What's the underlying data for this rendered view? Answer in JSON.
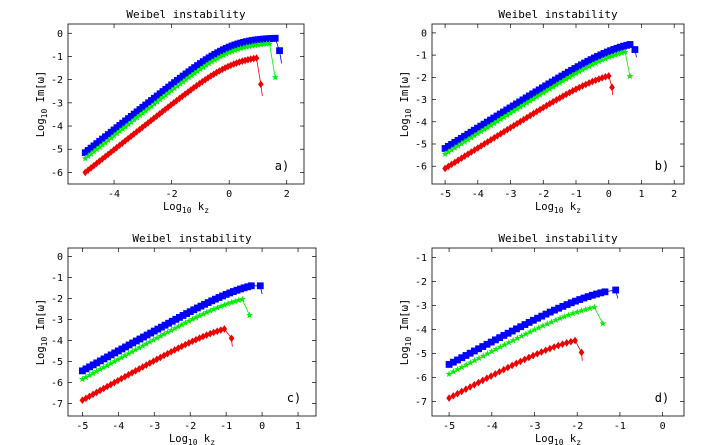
{
  "figure": {
    "panels": [
      "a",
      "b",
      "c",
      "d"
    ]
  },
  "chart_data": [
    {
      "type": "scatter",
      "panel_label": "a)",
      "title": "Weibel instability",
      "xlabel_base": "Log",
      "xlabel_sub": "10",
      "xlabel_var": "k",
      "xlabel_var_sub": "z",
      "ylabel_base": "Log",
      "ylabel_sub": "10",
      "ylabel_rest": "Im[ω]",
      "xlim": [
        -5.6,
        2.6
      ],
      "ylim": [
        -6.5,
        0.4
      ],
      "xticks": [
        -4,
        -2,
        0,
        2
      ],
      "yticks": [
        0,
        -1,
        -2,
        -3,
        -4,
        -5,
        -6
      ],
      "series": [
        {
          "color": "#0000ff",
          "marker": "square",
          "x_start": -5.0,
          "x_end": 1.6,
          "y_start": -5.15,
          "slope": 0.98,
          "peak_x": 0.65,
          "peak_y": -0.18,
          "end_x": 1.75,
          "end_y": -0.75,
          "tail_x": 1.82,
          "tail_y": -1.3
        },
        {
          "color": "#00ee00",
          "marker": "star",
          "x_start": -5.0,
          "x_end": 1.4,
          "y_start": -5.4,
          "slope": 0.98,
          "peak_x": 0.6,
          "peak_y": -0.4,
          "end_x": 1.6,
          "end_y": -1.9,
          "tail_x": null,
          "tail_y": null
        },
        {
          "color": "#ee0000",
          "marker": "diamond",
          "x_start": -5.0,
          "x_end": 0.95,
          "y_start": -6.0,
          "slope": 0.98,
          "peak_x": 0.55,
          "peak_y": -0.95,
          "end_x": 1.1,
          "end_y": -2.2,
          "tail_x": 1.15,
          "tail_y": -2.7
        }
      ]
    },
    {
      "type": "scatter",
      "panel_label": "b)",
      "title": "Weibel instability",
      "xlabel_base": "Log",
      "xlabel_sub": "10",
      "xlabel_var": "k",
      "xlabel_var_sub": "z",
      "ylabel_base": "Log",
      "ylabel_sub": "10",
      "ylabel_rest": "Im[ω]",
      "xlim": [
        -5.4,
        2.3
      ],
      "ylim": [
        -6.8,
        0.4
      ],
      "xticks": [
        -5,
        -4,
        -3,
        -2,
        -1,
        0,
        1,
        2
      ],
      "yticks": [
        0,
        -1,
        -2,
        -3,
        -4,
        -5,
        -6
      ],
      "series": [
        {
          "color": "#0000ff",
          "marker": "square",
          "x_start": -5.0,
          "x_end": 0.65,
          "y_start": -5.2,
          "slope": 0.92,
          "peak_x": 0.3,
          "peak_y": -0.25,
          "end_x": 0.8,
          "end_y": -0.75,
          "tail_x": 0.85,
          "tail_y": -1.1
        },
        {
          "color": "#00ee00",
          "marker": "star",
          "x_start": -5.0,
          "x_end": 0.5,
          "y_start": -5.45,
          "slope": 0.92,
          "peak_x": 0.25,
          "peak_y": -0.55,
          "end_x": 0.65,
          "end_y": -1.95,
          "tail_x": null,
          "tail_y": null
        },
        {
          "color": "#ee0000",
          "marker": "diamond",
          "x_start": -5.0,
          "x_end": 0.0,
          "y_start": -6.1,
          "slope": 0.92,
          "peak_x": -0.2,
          "peak_y": -1.6,
          "end_x": 0.1,
          "end_y": -2.45,
          "tail_x": 0.12,
          "tail_y": -2.8
        }
      ]
    },
    {
      "type": "scatter",
      "panel_label": "c)",
      "title": "Weibel instability",
      "xlabel_base": "Log",
      "xlabel_sub": "10",
      "xlabel_var": "k",
      "xlabel_var_sub": "z",
      "ylabel_base": "Log",
      "ylabel_sub": "10",
      "ylabel_rest": "Im[ω]",
      "xlim": [
        -5.4,
        1.5
      ],
      "ylim": [
        -7.6,
        0.4
      ],
      "xticks": [
        -5,
        -4,
        -3,
        -2,
        -1,
        0,
        1
      ],
      "yticks": [
        0,
        -1,
        -2,
        -3,
        -4,
        -5,
        -6,
        -7
      ],
      "series": [
        {
          "color": "#0000ff",
          "marker": "square",
          "x_start": -5.0,
          "x_end": -0.3,
          "y_start": -5.45,
          "slope": 0.95,
          "peak_x": -0.45,
          "peak_y": -1.05,
          "end_x": -0.05,
          "end_y": -1.4,
          "tail_x": 0.0,
          "tail_y": -1.8
        },
        {
          "color": "#00ee00",
          "marker": "star",
          "x_start": -5.0,
          "x_end": -0.55,
          "y_start": -5.85,
          "slope": 0.95,
          "peak_x": -0.65,
          "peak_y": -1.7,
          "end_x": -0.35,
          "end_y": -2.8,
          "tail_x": null,
          "tail_y": null
        },
        {
          "color": "#ee0000",
          "marker": "diamond",
          "x_start": -5.0,
          "x_end": -1.05,
          "y_start": -6.85,
          "slope": 0.95,
          "peak_x": -1.1,
          "peak_y": -3.05,
          "end_x": -0.85,
          "end_y": -3.9,
          "tail_x": -0.83,
          "tail_y": -4.3
        }
      ]
    },
    {
      "type": "scatter",
      "panel_label": "d)",
      "title": "Weibel instability",
      "xlabel_base": "Log",
      "xlabel_sub": "10",
      "xlabel_var": "k",
      "xlabel_var_sub": "z",
      "ylabel_base": "Log",
      "ylabel_sub": "10",
      "ylabel_rest": "Im[ω]",
      "xlim": [
        -5.4,
        0.5
      ],
      "ylim": [
        -7.6,
        -0.6
      ],
      "xticks": [
        -5,
        -4,
        -3,
        -2,
        -1,
        0
      ],
      "yticks": [
        -1,
        -2,
        -3,
        -4,
        -5,
        -6,
        -7
      ],
      "series": [
        {
          "color": "#0000ff",
          "marker": "square",
          "x_start": -5.0,
          "x_end": -1.35,
          "y_start": -5.45,
          "slope": 0.95,
          "peak_x": -1.45,
          "peak_y": -2.1,
          "end_x": -1.1,
          "end_y": -2.35,
          "tail_x": -1.05,
          "tail_y": -2.7
        },
        {
          "color": "#00ee00",
          "marker": "star",
          "x_start": -5.0,
          "x_end": -1.6,
          "y_start": -5.85,
          "slope": 0.95,
          "peak_x": -1.7,
          "peak_y": -2.75,
          "end_x": -1.4,
          "end_y": -3.75,
          "tail_x": null,
          "tail_y": null
        },
        {
          "color": "#ee0000",
          "marker": "diamond",
          "x_start": -5.0,
          "x_end": -2.05,
          "y_start": -6.85,
          "slope": 0.95,
          "peak_x": -2.15,
          "peak_y": -4.1,
          "end_x": -1.9,
          "end_y": -4.95,
          "tail_x": -1.88,
          "tail_y": -5.3
        }
      ]
    }
  ]
}
